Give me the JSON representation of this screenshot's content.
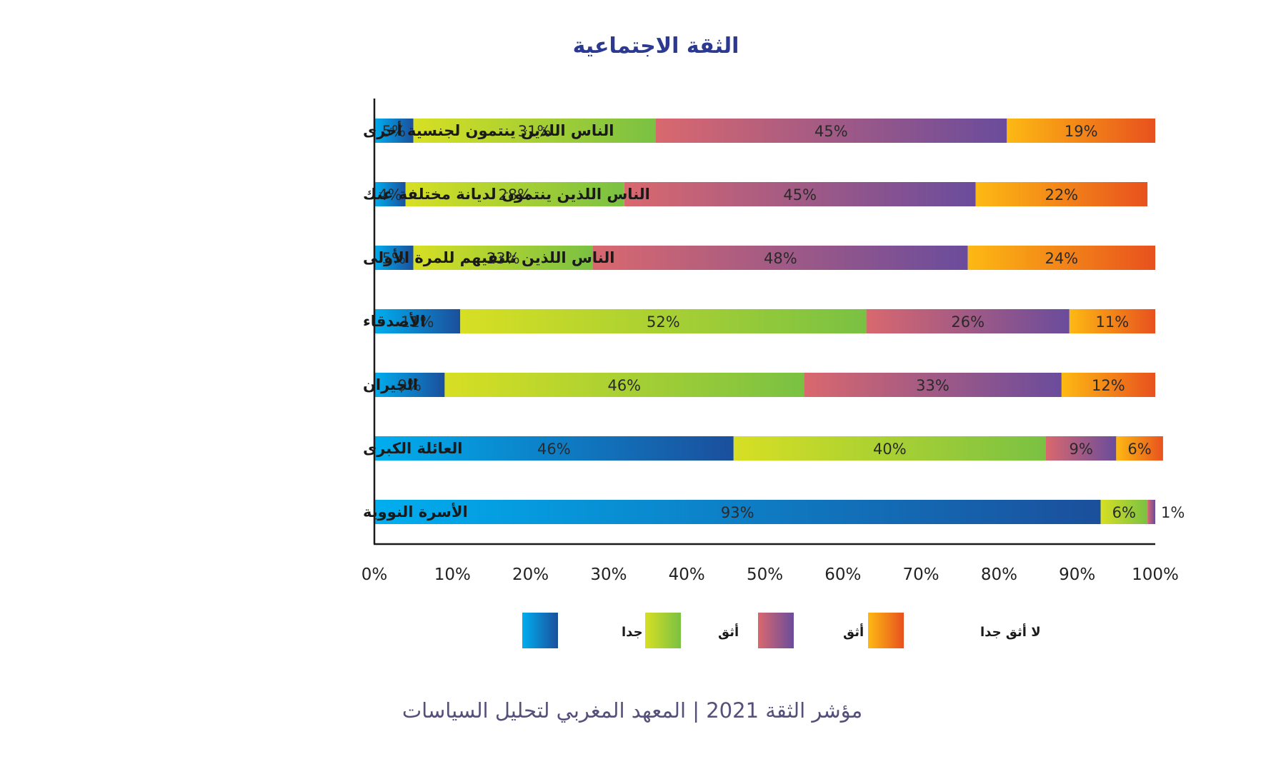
{
  "chart_data": {
    "type": "bar",
    "orientation": "horizontal",
    "stacked": true,
    "title": "الثقة الاجتماعية",
    "categories": [
      "الناس اللذين ينتمون لجنسية أخرى",
      "الناس اللذين ينتمون لديانة مختلفة عنك",
      "الناس اللذين تلتقيهم للمرة الأولى",
      "الأصدقاء",
      "الجيران",
      "العائلة الكبرى",
      "الأسرة النووية"
    ],
    "series": [
      {
        "name": "أثق جدا",
        "color_start": "#00aeef",
        "color_end": "#1b4f9c",
        "values": [
          5,
          4,
          5,
          11,
          9,
          46,
          93
        ]
      },
      {
        "name": "أثق",
        "color_start": "#d7df23",
        "color_end": "#7ac143",
        "values": [
          31,
          28,
          23,
          52,
          46,
          40,
          6
        ]
      },
      {
        "name": "لا أثق",
        "color_start": "#d9686e",
        "color_end": "#6a4c9c",
        "values": [
          45,
          45,
          48,
          26,
          33,
          9,
          1
        ]
      },
      {
        "name": "لا أثق جدا",
        "color_start": "#fdb913",
        "color_end": "#e8511e",
        "values": [
          19,
          22,
          24,
          11,
          12,
          6,
          0
        ]
      }
    ],
    "segment_labels": [
      [
        "5%",
        "31%",
        "45%",
        "19%"
      ],
      [
        "4%",
        "28%",
        "45%",
        "22%"
      ],
      [
        "5%",
        "23%",
        "48%",
        "24%"
      ],
      [
        "11%",
        "52%",
        "26%",
        "11%"
      ],
      [
        "9%",
        "46%",
        "33%",
        "12%"
      ],
      [
        "46%",
        "40%",
        "9%",
        "6%"
      ],
      [
        "93%",
        "6%",
        "1%",
        ""
      ]
    ],
    "x_ticks": [
      "0%",
      "10%",
      "20%",
      "30%",
      "40%",
      "50%",
      "60%",
      "70%",
      "80%",
      "90%",
      "100%"
    ],
    "xlim": [
      0,
      100
    ],
    "grid": false,
    "legend_position": "bottom"
  },
  "footer": {
    "text": "مؤشر الثقة 2021 | المعهد المغربي لتحليل السياسات"
  },
  "colors": {
    "title": "#2b3990",
    "footer": "#54507a",
    "axis": "#1a1a1a"
  }
}
